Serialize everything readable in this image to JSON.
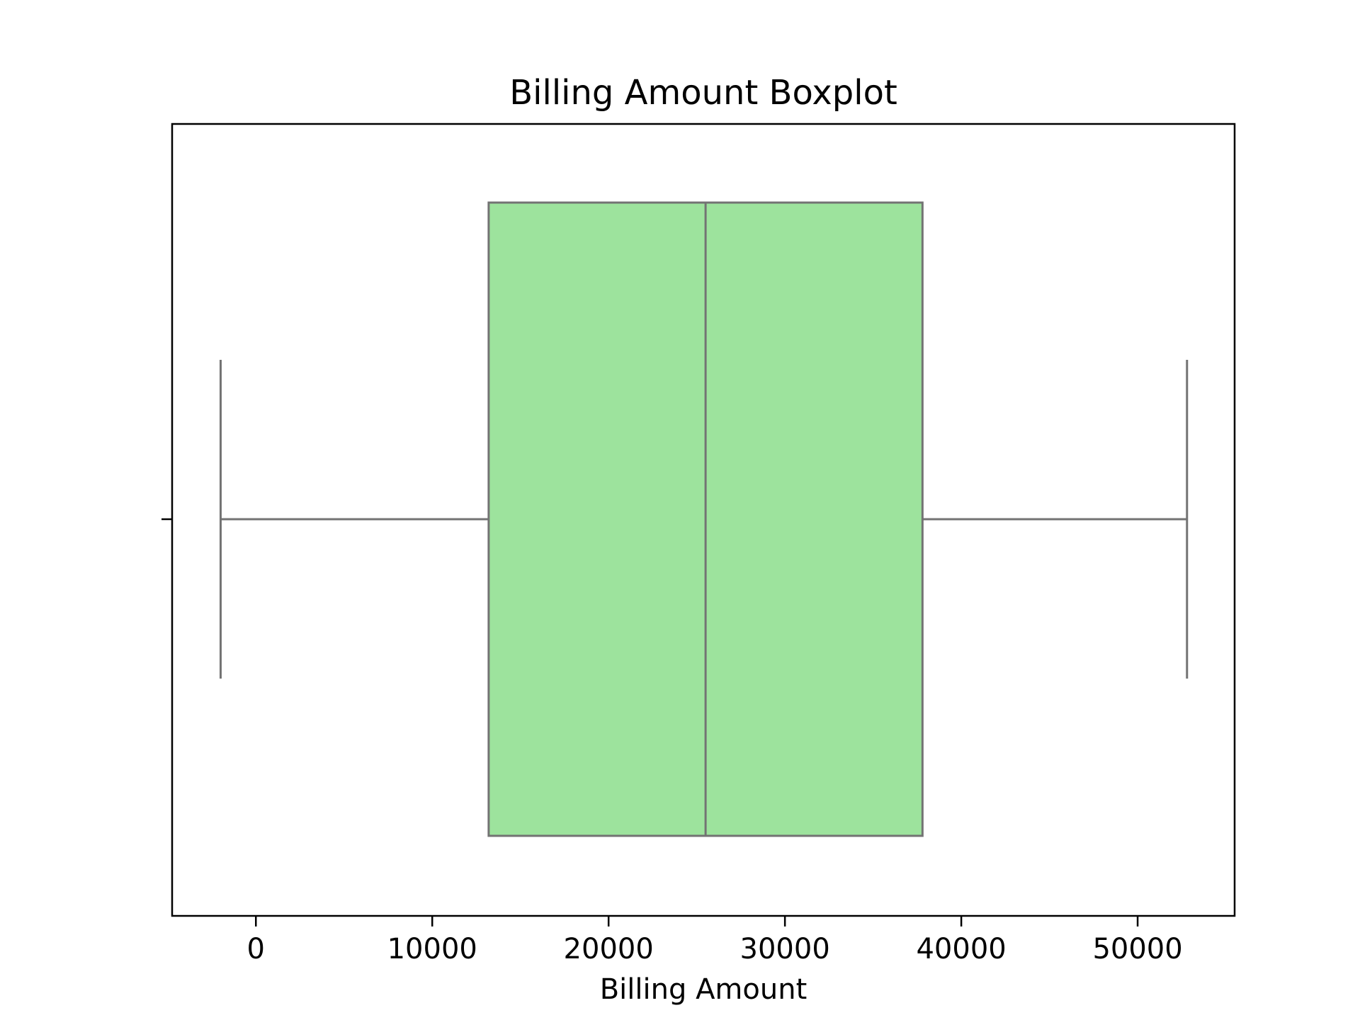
{
  "chart_data": {
    "type": "boxplot",
    "orientation": "horizontal",
    "title": "Billing Amount Boxplot",
    "xlabel": "Billing Amount",
    "ylabel": "",
    "xlim": [
      -4750,
      55500
    ],
    "xticks": [
      0,
      10000,
      20000,
      30000,
      40000,
      50000
    ],
    "xtick_labels": [
      "0",
      "10000",
      "20000",
      "30000",
      "40000",
      "50000"
    ],
    "grid": false,
    "legend": "none",
    "box": {
      "whisker_low": -2000,
      "q1": 13200,
      "median": 25500,
      "q3": 37800,
      "whisker_high": 52800
    },
    "colors": {
      "box_fill": "#9de39d",
      "box_line": "#737373",
      "axes": "#000000"
    }
  }
}
